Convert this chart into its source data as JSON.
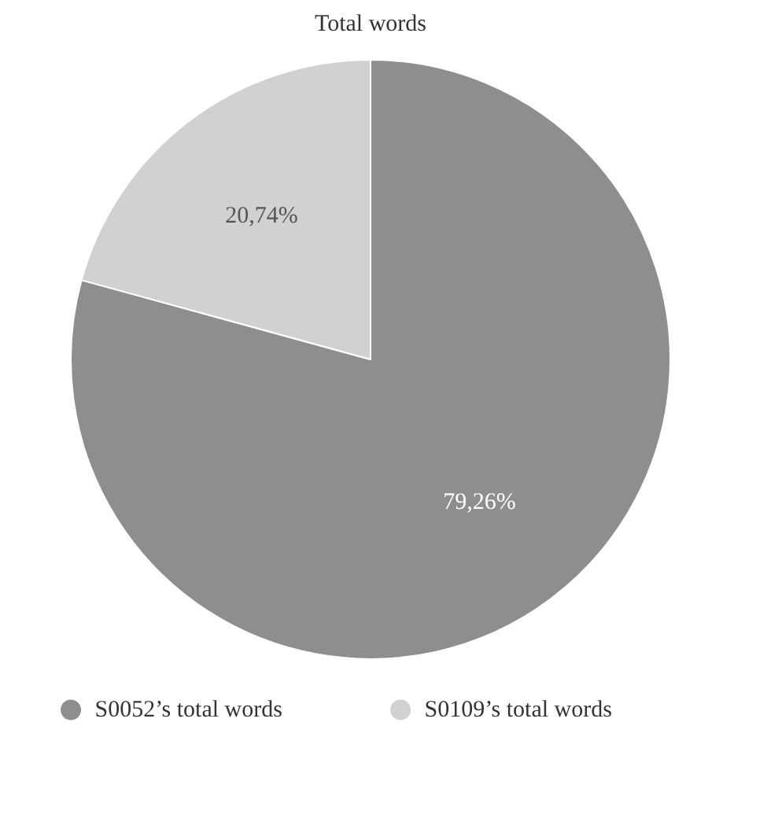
{
  "chart_data": {
    "type": "pie",
    "title": "Total words",
    "categories": [
      "S0052’s total words",
      "S0109’s total words"
    ],
    "values": [
      79.26,
      20.74
    ],
    "colors": [
      "#8e8e90",
      "#d1d1d3"
    ],
    "value_labels": [
      "79,26%",
      "20,74%"
    ],
    "legend": "bottom"
  }
}
